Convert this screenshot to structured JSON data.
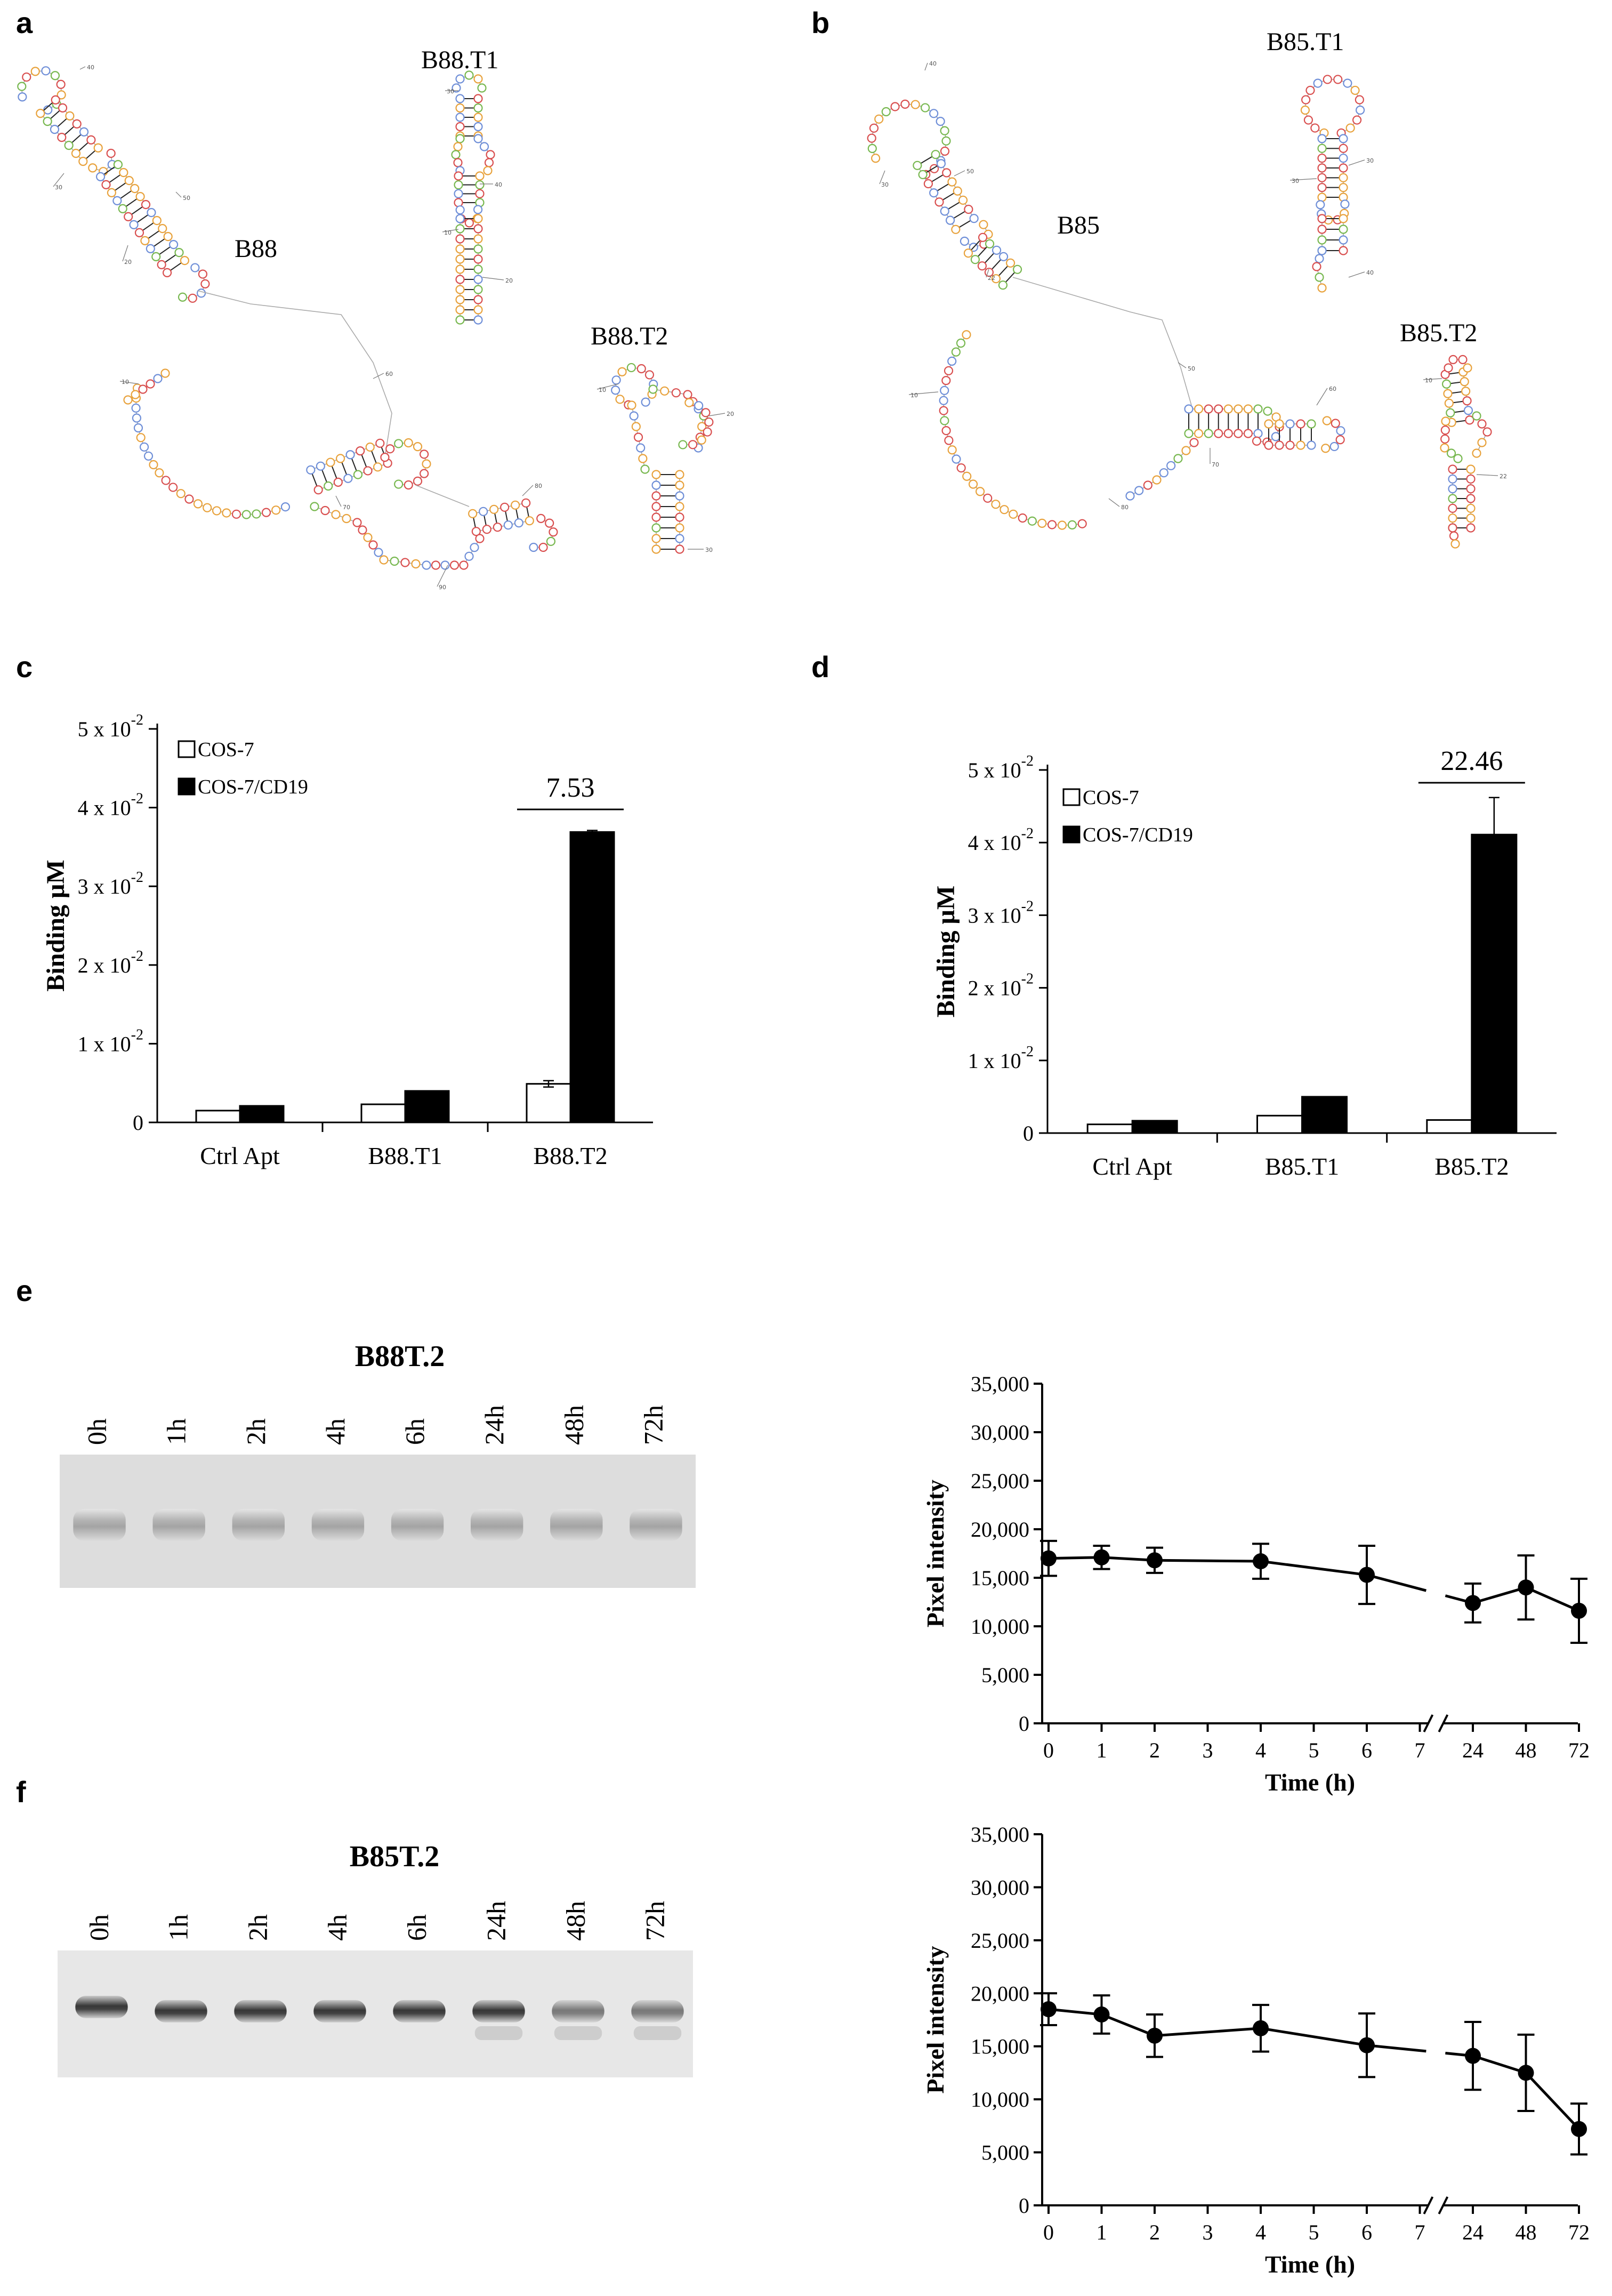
{
  "panels": {
    "a": {
      "letter": "a",
      "structures": [
        "B88",
        "B88.T1",
        "B88.T2"
      ],
      "tiny_numbers": [
        "40",
        "30",
        "20",
        "10",
        "50",
        "60",
        "70",
        "80",
        "90"
      ]
    },
    "b": {
      "letter": "b",
      "structures": [
        "B85",
        "B85.T1",
        "B85.T2"
      ],
      "tiny_numbers": [
        "40",
        "30",
        "22",
        "10",
        "50",
        "60",
        "70",
        "80"
      ]
    },
    "c": {
      "letter": "c"
    },
    "d": {
      "letter": "d"
    },
    "e": {
      "letter": "e",
      "gel_title": "B88T.2",
      "lanes": [
        "0h",
        "1h",
        "2h",
        "4h",
        "6h",
        "24h",
        "48h",
        "72h"
      ]
    },
    "f": {
      "letter": "f",
      "gel_title": "B85T.2",
      "lanes": [
        "0h",
        "1h",
        "2h",
        "4h",
        "6h",
        "24h",
        "48h",
        "72h"
      ]
    }
  },
  "chart_data": [
    {
      "id": "c",
      "type": "bar",
      "ylabel": "Binding μM",
      "ylim": [
        0,
        0.05
      ],
      "yticks": [
        {
          "value": 0,
          "label": "0"
        },
        {
          "value": 0.01,
          "label": "1 x 10",
          "exp": "-2"
        },
        {
          "value": 0.02,
          "label": "2 x 10",
          "exp": "-2"
        },
        {
          "value": 0.03,
          "label": "3 x 10",
          "exp": "-2"
        },
        {
          "value": 0.04,
          "label": "4 x 10",
          "exp": "-2"
        },
        {
          "value": 0.05,
          "label": "5 x 10",
          "exp": "-2"
        }
      ],
      "categories": [
        "Ctrl Apt",
        "B88.T1",
        "B88.T2"
      ],
      "series": [
        {
          "name": "COS-7",
          "color": "#ffffff",
          "values": [
            0.0015,
            0.0023,
            0.0049
          ],
          "errors": [
            0,
            0,
            0.0004
          ]
        },
        {
          "name": "COS-7/CD19",
          "color": "#000000",
          "values": [
            0.0021,
            0.004,
            0.0369
          ],
          "errors": [
            0,
            0,
            0.0002
          ]
        }
      ],
      "annotation": {
        "text": "7.53",
        "category": 2
      },
      "legend_position": "top-left"
    },
    {
      "id": "d",
      "type": "bar",
      "ylabel": "Binding μM",
      "ylim": [
        0,
        0.05
      ],
      "yticks": [
        {
          "value": 0,
          "label": "0"
        },
        {
          "value": 0.01,
          "label": "1 x 10",
          "exp": "-2"
        },
        {
          "value": 0.02,
          "label": "2 x 10",
          "exp": "-2"
        },
        {
          "value": 0.03,
          "label": "3 x 10",
          "exp": "-2"
        },
        {
          "value": 0.04,
          "label": "4 x 10",
          "exp": "-2"
        },
        {
          "value": 0.05,
          "label": "5 x 10",
          "exp": "-2"
        }
      ],
      "categories": [
        "Ctrl Apt",
        "B85.T1",
        "B85.T2"
      ],
      "series": [
        {
          "name": "COS-7",
          "color": "#ffffff",
          "values": [
            0.0012,
            0.0024,
            0.0018
          ],
          "errors": [
            0,
            0,
            0
          ]
        },
        {
          "name": "COS-7/CD19",
          "color": "#000000",
          "values": [
            0.0017,
            0.005,
            0.0411
          ],
          "errors": [
            0,
            0,
            0.0051
          ]
        }
      ],
      "annotation": {
        "text": "22.46",
        "category": 2
      },
      "legend_position": "top-left"
    },
    {
      "id": "e",
      "type": "line",
      "xlabel": "Time (h)",
      "ylabel": "Pixel intensity",
      "ylim": [
        0,
        35000
      ],
      "yticks": [
        "0",
        "5,000",
        "10,000",
        "15,000",
        "20,000",
        "25,000",
        "30,000",
        "35,000"
      ],
      "xticks": [
        "0",
        "1",
        "2",
        "3",
        "4",
        "5",
        "6",
        "7",
        "24",
        "48",
        "72"
      ],
      "x": [
        0,
        1,
        2,
        4,
        6,
        24,
        48,
        72
      ],
      "y": [
        17000,
        17100,
        16800,
        16700,
        15300,
        12400,
        14000,
        11600
      ],
      "err": [
        1800,
        1200,
        1300,
        1800,
        3000,
        2000,
        3300,
        3300
      ],
      "axis_break": "between 7 and 24"
    },
    {
      "id": "f",
      "type": "line",
      "xlabel": "Time (h)",
      "ylabel": "Pixel intensity",
      "ylim": [
        0,
        35000
      ],
      "yticks": [
        "0",
        "5,000",
        "10,000",
        "15,000",
        "20,000",
        "25,000",
        "30,000",
        "35,000"
      ],
      "xticks": [
        "0",
        "1",
        "2",
        "3",
        "4",
        "5",
        "6",
        "7",
        "24",
        "48",
        "72"
      ],
      "x": [
        0,
        1,
        2,
        4,
        6,
        24,
        48,
        72
      ],
      "y": [
        18500,
        18000,
        16000,
        16700,
        15100,
        14100,
        12500,
        7200
      ],
      "err": [
        1500,
        1800,
        2000,
        2200,
        3000,
        3200,
        3600,
        2400
      ],
      "axis_break": "between 7 and 24"
    }
  ]
}
